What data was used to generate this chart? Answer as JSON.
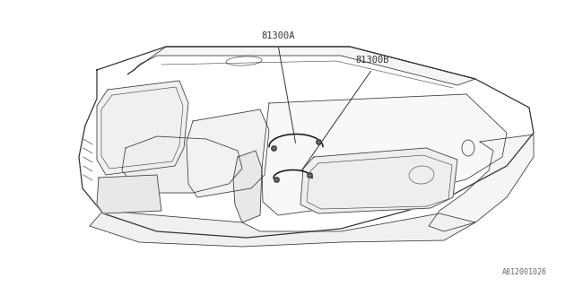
{
  "background_color": "#ffffff",
  "line_color": "#333333",
  "label_color": "#333333",
  "watermark": "A812001026",
  "lw_main": 0.9,
  "lw_thin": 0.55,
  "lw_detail": 0.4
}
